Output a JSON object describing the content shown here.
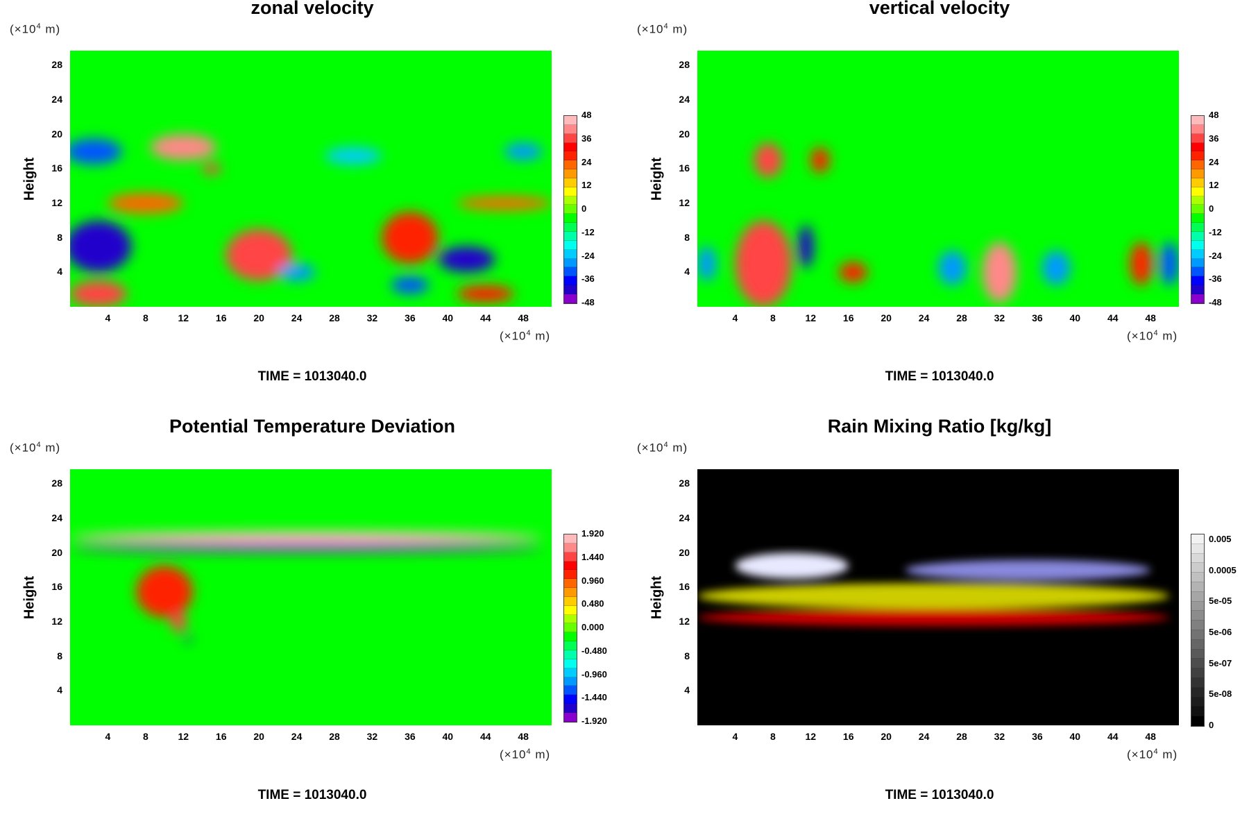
{
  "colors": {
    "field_bg_green": "#00ff00",
    "rain_bg": "#000000",
    "rainbow_scale": [
      "#8a00cc",
      "#2200cc",
      "#0000ff",
      "#0055ff",
      "#0099ff",
      "#00ccff",
      "#00ffee",
      "#00ffaa",
      "#00ff55",
      "#00ff00",
      "#66ff00",
      "#aaff00",
      "#ffff00",
      "#ffcc00",
      "#ff9900",
      "#ff6600",
      "#ff2200",
      "#ff0000",
      "#ff4444",
      "#ff8888",
      "#ffbbbb"
    ],
    "gray_scale": [
      "#000000",
      "#111111",
      "#1c1c1c",
      "#262626",
      "#333333",
      "#404040",
      "#4d4d4d",
      "#5a5a5a",
      "#666666",
      "#737373",
      "#808080",
      "#8c8c8c",
      "#999999",
      "#a6a6a6",
      "#b3b3b3",
      "#c0c0c0",
      "#cccccc",
      "#d9d9d9",
      "#e6e6e6",
      "#f2f2f2"
    ]
  },
  "panels": [
    {
      "title": "zonal velocity",
      "ylabel": "Height",
      "y_unit": "(×10",
      "y_unit_exp": "4",
      "y_unit_tail": " m)",
      "x_unit": "(×10",
      "x_unit_exp": "4",
      "x_unit_tail": " m)",
      "time_label": "TIME = 1013040.0",
      "colorbar_labels": [
        "48",
        "36",
        "24",
        "12",
        "0",
        "-12",
        "-24",
        "-36",
        "-48"
      ]
    },
    {
      "title": "vertical velocity",
      "ylabel": "Height",
      "y_unit": "(×10",
      "y_unit_exp": "4",
      "y_unit_tail": " m)",
      "x_unit": "(×10",
      "x_unit_exp": "4",
      "x_unit_tail": " m)",
      "time_label": "TIME = 1013040.0",
      "colorbar_labels": [
        "48",
        "36",
        "24",
        "12",
        "0",
        "-12",
        "-24",
        "-36",
        "-48"
      ]
    },
    {
      "title": "Potential Temperature Deviation",
      "ylabel": "Height",
      "y_unit": "(×10",
      "y_unit_exp": "4",
      "y_unit_tail": " m)",
      "x_unit": "(×10",
      "x_unit_exp": "4",
      "x_unit_tail": " m)",
      "time_label": "TIME = 1013040.0",
      "colorbar_labels": [
        "1.920",
        "1.440",
        "0.960",
        "0.480",
        "0.000",
        "-0.480",
        "-0.960",
        "-1.440",
        "-1.920"
      ]
    },
    {
      "title": "Rain Mixing Ratio [kg/kg]",
      "ylabel": "Height",
      "y_unit": "(×10",
      "y_unit_exp": "4",
      "y_unit_tail": " m)",
      "x_unit": "(×10",
      "x_unit_exp": "4",
      "x_unit_tail": " m)",
      "time_label": "TIME = 1013040.0",
      "colorbar_labels": [
        "0.005",
        "0.0005",
        "5e-05",
        "5e-06",
        "5e-07",
        "5e-08",
        "0"
      ]
    }
  ],
  "chart_data": [
    {
      "type": "heatmap",
      "title": "zonal velocity",
      "xlabel": "",
      "ylabel": "Height",
      "x_ticks": [
        4,
        8,
        12,
        16,
        20,
        24,
        28,
        32,
        36,
        40,
        44,
        48
      ],
      "y_ticks": [
        4,
        8,
        12,
        16,
        20,
        24,
        28
      ],
      "xlim": [
        0,
        51
      ],
      "ylim": [
        0,
        29.7
      ],
      "colorbar_range": [
        -48,
        48
      ],
      "colorbar_ticks": [
        48,
        36,
        24,
        12,
        0,
        -12,
        -24,
        -36,
        -48
      ],
      "features": [
        {
          "x": 3,
          "y": 7,
          "rx": 3.5,
          "ry": 3,
          "value": -44
        },
        {
          "x": 2.5,
          "y": 18,
          "rx": 3,
          "ry": 1.5,
          "value": -36
        },
        {
          "x": 12,
          "y": 18.5,
          "rx": 3.5,
          "ry": 1.5,
          "value": 42
        },
        {
          "x": 15,
          "y": 16,
          "rx": 1,
          "ry": 0.6,
          "value": 40
        },
        {
          "x": 8,
          "y": 12,
          "rx": 4,
          "ry": 1.2,
          "value": 26
        },
        {
          "x": 20,
          "y": 6,
          "rx": 3.5,
          "ry": 3,
          "value": 36
        },
        {
          "x": 36,
          "y": 8,
          "rx": 3,
          "ry": 3,
          "value": 30
        },
        {
          "x": 42,
          "y": 5.5,
          "rx": 3,
          "ry": 1.5,
          "value": -45
        },
        {
          "x": 3,
          "y": 1.5,
          "rx": 3,
          "ry": 1.5,
          "value": 40
        },
        {
          "x": 46,
          "y": 12,
          "rx": 5,
          "ry": 0.8,
          "value": 22
        },
        {
          "x": 30,
          "y": 17.5,
          "rx": 3,
          "ry": 1,
          "value": -24
        },
        {
          "x": 24,
          "y": 4,
          "rx": 2,
          "ry": 1,
          "value": -30
        },
        {
          "x": 36,
          "y": 2.5,
          "rx": 2,
          "ry": 1,
          "value": -36
        },
        {
          "x": 44,
          "y": 1.5,
          "rx": 3,
          "ry": 1,
          "value": 30
        },
        {
          "x": 48,
          "y": 18,
          "rx": 2,
          "ry": 1,
          "value": -30
        }
      ]
    },
    {
      "type": "heatmap",
      "title": "vertical velocity",
      "xlabel": "",
      "ylabel": "Height",
      "x_ticks": [
        4,
        8,
        12,
        16,
        20,
        24,
        28,
        32,
        36,
        40,
        44,
        48
      ],
      "y_ticks": [
        4,
        8,
        12,
        16,
        20,
        24,
        28
      ],
      "xlim": [
        0,
        51
      ],
      "ylim": [
        0,
        29.7
      ],
      "colorbar_range": [
        -48,
        48
      ],
      "colorbar_ticks": [
        48,
        36,
        24,
        12,
        0,
        -12,
        -24,
        -36,
        -48
      ],
      "features": [
        {
          "x": 7,
          "y": 5,
          "rx": 3,
          "ry": 5,
          "value": 36
        },
        {
          "x": 7.5,
          "y": 17,
          "rx": 1.5,
          "ry": 2,
          "value": 40
        },
        {
          "x": 11.5,
          "y": 7,
          "rx": 0.8,
          "ry": 2.5,
          "value": -44
        },
        {
          "x": 16.5,
          "y": 4,
          "rx": 1.5,
          "ry": 1.2,
          "value": 30
        },
        {
          "x": 32,
          "y": 4,
          "rx": 1.8,
          "ry": 3.5,
          "value": 42
        },
        {
          "x": 27,
          "y": 4.5,
          "rx": 1.5,
          "ry": 2,
          "value": -30
        },
        {
          "x": 38,
          "y": 4.5,
          "rx": 1.5,
          "ry": 2,
          "value": -28
        },
        {
          "x": 47,
          "y": 5,
          "rx": 1.2,
          "ry": 2.5,
          "value": 30
        },
        {
          "x": 50,
          "y": 5,
          "rx": 1,
          "ry": 2.5,
          "value": -36
        },
        {
          "x": 1,
          "y": 5,
          "rx": 1,
          "ry": 2,
          "value": -30
        },
        {
          "x": 13,
          "y": 17,
          "rx": 1,
          "ry": 1.5,
          "value": 30
        }
      ]
    },
    {
      "type": "heatmap",
      "title": "Potential Temperature Deviation",
      "xlabel": "",
      "ylabel": "Height",
      "x_ticks": [
        4,
        8,
        12,
        16,
        20,
        24,
        28,
        32,
        36,
        40,
        44,
        48
      ],
      "y_ticks": [
        4,
        8,
        12,
        16,
        20,
        24,
        28
      ],
      "xlim": [
        0,
        51
      ],
      "ylim": [
        0,
        29.7
      ],
      "colorbar_range": [
        -1.92,
        1.92
      ],
      "colorbar_ticks": [
        1.92,
        1.44,
        0.96,
        0.48,
        0.0,
        -0.48,
        -0.96,
        -1.44,
        -1.92
      ],
      "features": [
        {
          "x": 25,
          "y": 21.8,
          "rx": 25,
          "ry": 0.7,
          "value": 1.92
        },
        {
          "x": 25,
          "y": 20.6,
          "rx": 25,
          "ry": 0.5,
          "value": -1.92
        },
        {
          "x": 10,
          "y": 15.5,
          "rx": 3,
          "ry": 3,
          "value": 1.2
        },
        {
          "x": 11.5,
          "y": 12,
          "rx": 0.8,
          "ry": 1.2,
          "value": 1.6
        },
        {
          "x": 12.5,
          "y": 10,
          "rx": 0.3,
          "ry": 0.4,
          "value": -1.8
        }
      ]
    },
    {
      "type": "heatmap",
      "title": "Rain Mixing Ratio [kg/kg]",
      "xlabel": "",
      "ylabel": "Height",
      "x_ticks": [
        4,
        8,
        12,
        16,
        20,
        24,
        28,
        32,
        36,
        40,
        44,
        48
      ],
      "y_ticks": [
        4,
        8,
        12,
        16,
        20,
        24,
        28
      ],
      "xlim": [
        0,
        51
      ],
      "ylim": [
        0,
        29.7
      ],
      "colorbar_ticks": [
        "0.005",
        "0.0005",
        "5e-05",
        "5e-06",
        "5e-07",
        "5e-08",
        "0"
      ],
      "features": [
        {
          "x": 10,
          "y": 18.5,
          "rx": 6,
          "ry": 1.5,
          "value": "0.005"
        },
        {
          "x": 35,
          "y": 18,
          "rx": 13,
          "ry": 1.2,
          "value": "0.0005"
        },
        {
          "x": 25,
          "y": 15,
          "rx": 25,
          "ry": 1.5,
          "value": "5e-05"
        },
        {
          "x": 25,
          "y": 12.5,
          "rx": 25,
          "ry": 1,
          "value": "5e-07"
        }
      ]
    }
  ]
}
